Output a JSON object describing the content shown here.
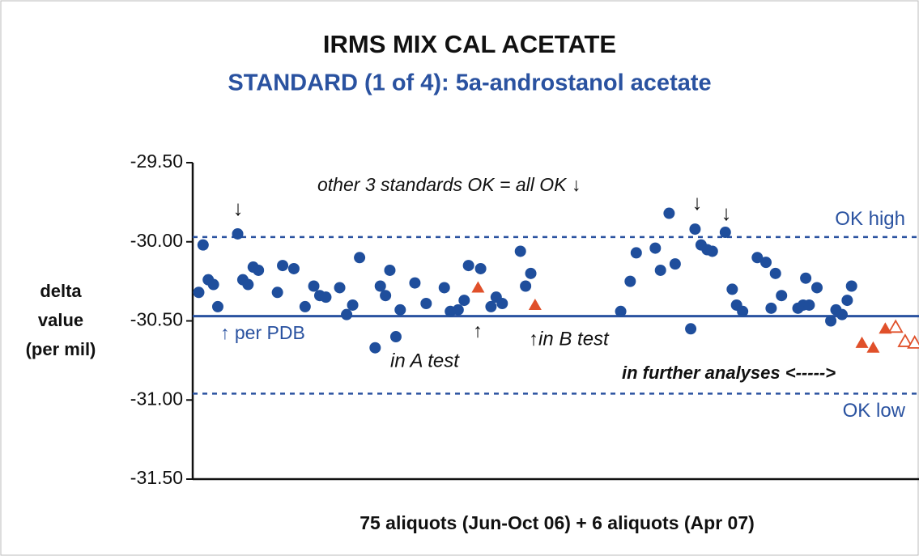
{
  "chart_data": {
    "type": "scatter",
    "title": "IRMS MIX CAL ACETATE",
    "subtitle": "STANDARD (1 of 4): 5a-androstanol acetate",
    "x_label": "75 aliquots (Jun-Oct 06) + 6 aliquots (Apr 07)",
    "y_label": [
      "delta",
      "value",
      "(per mil)"
    ],
    "xlim": [
      0,
      84
    ],
    "ylim": [
      -31.5,
      -29.5
    ],
    "yticks": [
      {
        "value": -29.5,
        "label": "-29.50"
      },
      {
        "value": -30,
        "label": "-30.00"
      },
      {
        "value": -30.5,
        "label": "-30.50"
      },
      {
        "value": -31,
        "label": "-31.00"
      },
      {
        "value": -31.5,
        "label": "-31.50"
      }
    ],
    "series": [
      {
        "color": "#1f4e9c",
        "marker": "circle",
        "x": [
          0.7,
          1.2,
          1.8,
          2.4,
          2.9,
          5.2,
          5.8,
          6.4,
          7.0,
          7.6,
          9.8,
          10.4,
          11.7,
          13.0,
          14.0,
          14.7,
          15.4,
          17.0,
          17.8,
          18.5,
          19.3,
          21.1,
          21.7,
          22.3,
          22.8,
          23.5,
          24.0,
          25.7,
          27.0,
          29.1,
          29.8,
          30.7,
          31.4,
          31.9,
          33.3,
          34.5,
          35.1,
          35.8,
          37.9,
          38.5,
          39.1,
          49.5,
          50.6,
          51.3,
          53.5,
          54.1,
          55.1,
          55.8,
          57.6,
          58.1,
          58.8,
          59.5,
          60.1,
          61.6,
          62.4,
          62.9,
          63.6,
          65.3,
          66.3,
          66.9,
          67.4,
          68.1,
          70.0,
          70.6,
          70.9,
          71.3,
          72.2,
          73.8,
          74.4,
          75.1,
          75.7,
          76.2
        ],
        "values": [
          -30.32,
          -30.02,
          -30.24,
          -30.27,
          -30.41,
          -29.95,
          -30.24,
          -30.27,
          -30.16,
          -30.18,
          -30.32,
          -30.15,
          -30.17,
          -30.41,
          -30.28,
          -30.34,
          -30.35,
          -30.29,
          -30.46,
          -30.4,
          -30.1,
          -30.67,
          -30.28,
          -30.34,
          -30.18,
          -30.6,
          -30.43,
          -30.26,
          -30.39,
          -30.29,
          -30.44,
          -30.43,
          -30.37,
          -30.15,
          -30.17,
          -30.41,
          -30.35,
          -30.39,
          -30.06,
          -30.28,
          -30.2,
          -30.44,
          -30.25,
          -30.07,
          -30.04,
          -30.18,
          -29.82,
          -30.14,
          -30.55,
          -29.92,
          -30.02,
          -30.05,
          -30.06,
          -29.94,
          -30.3,
          -30.4,
          -30.44,
          -30.1,
          -30.13,
          -30.42,
          -30.2,
          -30.34,
          -30.42,
          -30.4,
          -30.23,
          -30.4,
          -30.29,
          -30.5,
          -30.43,
          -30.46,
          -30.37,
          -30.28
        ]
      },
      {
        "color": "#e0502a",
        "marker": "triangle",
        "x": [
          33.0,
          39.6,
          77.4,
          78.7,
          80.1
        ],
        "values": [
          -30.29,
          -30.4,
          -30.64,
          -30.67,
          -30.55
        ]
      },
      {
        "color": "#e0502a",
        "marker": "triangle-open",
        "x": [
          81.3,
          82.4,
          83.5
        ],
        "values": [
          -30.54,
          -30.63,
          -30.64
        ]
      }
    ],
    "reference_lines": [
      {
        "value": -29.97,
        "style": "dashed",
        "label": "OK high"
      },
      {
        "value": -30.47,
        "style": "solid"
      },
      {
        "value": -30.96,
        "style": "dashed",
        "label": "OK low"
      }
    ],
    "annotations": [
      "other 3 standards OK = all OK ↓",
      "↓",
      "↓",
      "↓",
      "↑ per PDB",
      "in A test",
      "↑",
      "↑in B test",
      "in further analyses <----->"
    ]
  }
}
